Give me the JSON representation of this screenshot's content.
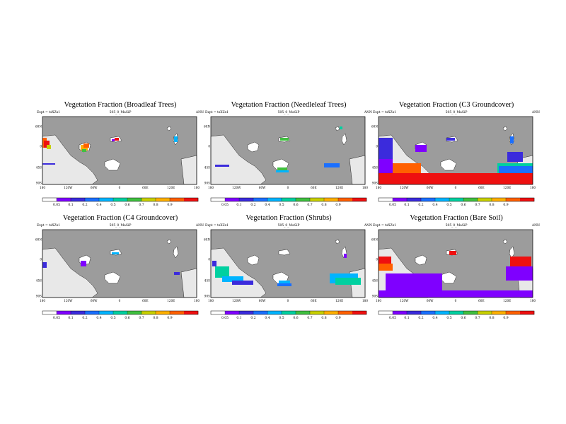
{
  "labels": {
    "expt": "Expt = tsXZx1",
    "case": "505_0_MaSiP",
    "season": "ANN"
  },
  "axes": {
    "lat_ticks": [
      "60N",
      "0",
      "45S",
      "90S"
    ],
    "lon_ticks": [
      "180",
      "120W",
      "60W",
      "0",
      "60E",
      "120E",
      "180"
    ]
  },
  "colorbar": {
    "ticks": [
      "0.05",
      "0.1",
      "0.2",
      "0.4",
      "0.5",
      "0.6",
      "0.7",
      "0.8",
      "0.9"
    ],
    "colors": [
      "#ffffff",
      "#7f00ff",
      "#3b2bdc",
      "#1a6fff",
      "#00b4ff",
      "#00d0a0",
      "#40c040",
      "#c8d000",
      "#ffb000",
      "#ff6000",
      "#ee1010"
    ]
  },
  "colors": {
    "ocean_gray": "#9c9c9c",
    "ice_white": "#e8e8e8",
    "border": "#000000"
  },
  "panels": [
    {
      "title": "Vegetation Fraction (Broadleaf Trees)"
    },
    {
      "title": "Vegetation Fraction (Needleleaf Trees)"
    },
    {
      "title": "Vegetation Fraction (C3 Groundcover)"
    },
    {
      "title": "Vegetation Fraction (C4 Groundcover)"
    },
    {
      "title": "Vegetation Fraction (Shrubs)"
    },
    {
      "title": "Vegetation Fraction (Bare Soil)"
    }
  ]
}
